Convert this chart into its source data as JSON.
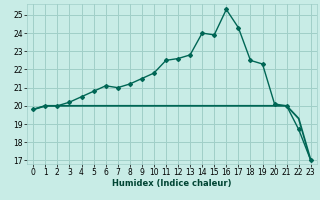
{
  "title": "",
  "xlabel": "Humidex (Indice chaleur)",
  "ylabel": "",
  "background_color": "#c8ece6",
  "grid_color": "#a0cfc8",
  "line_color": "#006655",
  "line_color2": "#004d40",
  "xlim": [
    -0.5,
    23.5
  ],
  "ylim": [
    16.8,
    25.6
  ],
  "yticks": [
    17,
    18,
    19,
    20,
    21,
    22,
    23,
    24,
    25
  ],
  "xticks": [
    0,
    1,
    2,
    3,
    4,
    5,
    6,
    7,
    8,
    9,
    10,
    11,
    12,
    13,
    14,
    15,
    16,
    17,
    18,
    19,
    20,
    21,
    22,
    23
  ],
  "curve1_x": [
    0,
    1,
    2,
    3,
    4,
    5,
    6,
    7,
    8,
    9,
    10,
    11,
    12,
    13,
    14,
    15,
    16,
    17,
    18,
    19,
    20,
    21,
    22,
    23
  ],
  "curve1_y": [
    19.8,
    20.0,
    20.0,
    20.2,
    20.5,
    20.8,
    21.1,
    21.0,
    21.2,
    21.5,
    21.8,
    22.5,
    22.6,
    22.8,
    24.0,
    23.9,
    25.3,
    24.3,
    22.5,
    22.3,
    20.1,
    20.0,
    18.7,
    17.0
  ],
  "curve2_x": [
    0,
    1,
    2,
    3,
    4,
    5,
    6,
    7,
    8,
    9,
    10,
    11,
    12,
    13,
    14,
    15,
    16,
    17,
    18,
    19,
    20,
    21,
    22,
    23
  ],
  "curve2_y": [
    19.8,
    20.0,
    20.0,
    20.0,
    20.0,
    20.0,
    20.0,
    20.0,
    20.0,
    20.0,
    20.0,
    20.0,
    20.0,
    20.0,
    20.0,
    20.0,
    20.0,
    20.0,
    20.0,
    20.0,
    20.0,
    20.0,
    19.3,
    17.0
  ],
  "xlabel_fontsize": 6.0,
  "tick_fontsize": 5.5
}
